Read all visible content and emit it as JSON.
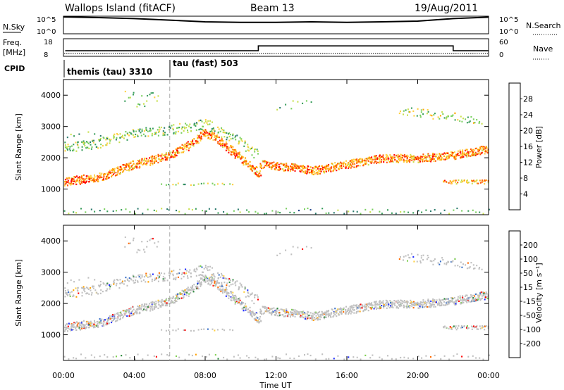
{
  "header": {
    "title": "Wallops Island (fitACF)",
    "beam": "Beam 13",
    "date": "19/Aug/2011"
  },
  "panel_labels": {
    "nsky": "N.Sky",
    "freq": "Freq.",
    "freq_unit": "[MHz]",
    "cpid": "CPID",
    "nsearch": "N.Search",
    "nave": "Nave"
  },
  "nsky_ticks": [
    "10^5",
    "10^0"
  ],
  "freq_ticks": [
    "18",
    "8"
  ],
  "nave_ticks": [
    "60",
    "0"
  ],
  "cpid_segments": [
    {
      "label": "themis (tau) 3310",
      "start_hour": 0
    },
    {
      "label": "tau (fast) 503",
      "start_hour": 6
    }
  ],
  "power_cbar": {
    "label": "Power [dB]",
    "ticks": [
      "28",
      "24",
      "20",
      "16",
      "12",
      "8",
      "4"
    ],
    "colors": [
      "#ff0000",
      "#ff5500",
      "#ffa500",
      "#ffd040",
      "#c8e04c",
      "#7ad060",
      "#3a9e5c",
      "#2a7a6c",
      "#24488c",
      "#0000ff"
    ]
  },
  "velocity_cbar": {
    "label": "Velocity [m s⁻¹]",
    "ticks": [
      "200",
      "100",
      "50",
      "15",
      "-15",
      "-50",
      "-100",
      "-200"
    ],
    "colors": [
      "#1e2bff",
      "#3a70c8",
      "#2e8b3e",
      "#7ed050",
      "#c0c0c0",
      "#ffd040",
      "#ffa000",
      "#ff6a00",
      "#ff0000"
    ]
  },
  "chart_data": [
    {
      "type": "line",
      "panel": "N.Sky / N.Search",
      "x_unit": "hour UT",
      "ylim": [
        0,
        100000
      ],
      "x": [
        0,
        2,
        4,
        6,
        8,
        10,
        12,
        14,
        16,
        18,
        20,
        22,
        24
      ],
      "values": [
        100000,
        60000,
        30000,
        10000,
        3000,
        2000,
        2000,
        3000,
        2000,
        3000,
        5000,
        30000,
        80000
      ]
    },
    {
      "type": "line",
      "panel": "Freq.",
      "y_unit": "MHz",
      "ylim": [
        8,
        18
      ],
      "x": [
        0.1,
        11,
        11,
        22,
        22,
        24
      ],
      "values": [
        11,
        11,
        14,
        14,
        11,
        11
      ]
    },
    {
      "type": "heatmap",
      "panel": "Power",
      "xlabel": "",
      "ylabel": "Slant Range [km]",
      "xlim": [
        0,
        24
      ],
      "ylim": [
        180,
        4500
      ],
      "yticks": [
        1000,
        2000,
        3000,
        4000
      ],
      "colorbar": "Power [dB]",
      "series": [
        {
          "x": [
            0,
            2,
            4,
            6,
            7,
            8,
            8.5,
            10,
            11,
            11.2,
            13,
            14,
            16,
            18,
            20,
            22,
            24
          ],
          "values": [
            1250,
            1400,
            1800,
            2100,
            2400,
            2800,
            2700,
            2000,
            1500,
            1800,
            1700,
            1600,
            1800,
            2000,
            2000,
            2100,
            2300
          ]
        },
        {
          "x": [
            0,
            2,
            4,
            6,
            8,
            10,
            11
          ],
          "values": [
            2300,
            2500,
            2800,
            2900,
            3100,
            2500,
            2100
          ]
        }
      ]
    },
    {
      "type": "heatmap",
      "panel": "Velocity",
      "xlabel": "Time UT",
      "ylabel": "Slant Range [km]",
      "xlim": [
        0,
        24
      ],
      "ylim": [
        180,
        4500
      ],
      "xticks": [
        "00:00",
        "04:00",
        "08:00",
        "12:00",
        "16:00",
        "20:00",
        "00:00"
      ],
      "yticks": [
        1000,
        2000,
        3000,
        4000
      ],
      "colorbar": "Velocity [m s⁻¹]"
    }
  ],
  "axes": {
    "ylabel": "Slant Range [km]",
    "xlabel": "Time UT",
    "yticks": [
      "1000",
      "2000",
      "3000",
      "4000"
    ],
    "xticks": [
      "00:00",
      "04:00",
      "08:00",
      "12:00",
      "16:00",
      "20:00",
      "00:00"
    ]
  }
}
